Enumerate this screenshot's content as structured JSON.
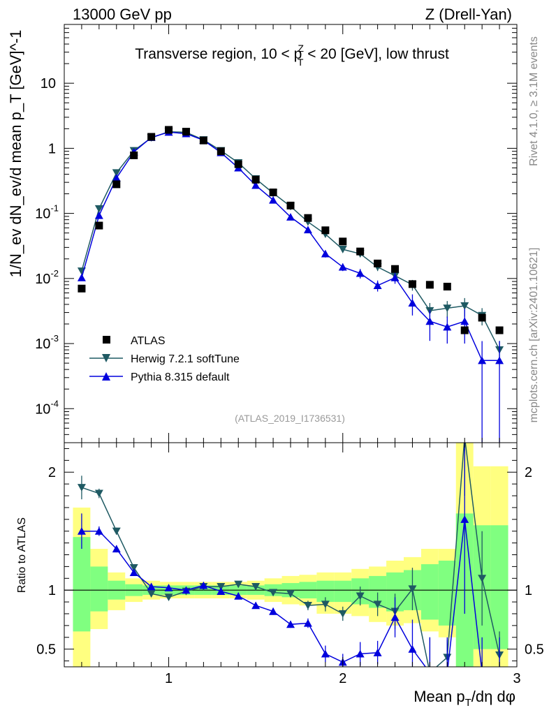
{
  "header": {
    "left": "13000 GeV pp",
    "right": "Z (Drell-Yan)"
  },
  "side_texts": {
    "rivet": "Rivet 4.1.0, ≥ 3.1M events",
    "mcplots": "mcplots.cern.ch [arXiv:2401.10621]"
  },
  "colors": {
    "data": "#000000",
    "herwig": "#1f5a63",
    "pythia": "#0000dd",
    "band_outer": "#ffff80",
    "band_inner": "#80ff80"
  },
  "chart_data": [
    {
      "type": "scatter",
      "title": "Transverse region, 10 < p_T^Z < 20 [GeV], low thrust",
      "title_parts": {
        "pre": "Transverse region, 10 < p",
        "sub": "T",
        "sup": "Z",
        "post": " < 20 [GeV], low thrust"
      },
      "ylabel": "1/N_ev dN_ev/d mean p_T [GeV]^-1",
      "yscale": "log",
      "ylim": [
        3e-05,
        80
      ],
      "xlim": [
        0.4,
        3.0
      ],
      "y_ticks": [
        {
          "v": 0.0001,
          "base": "10",
          "exp": "-4"
        },
        {
          "v": 0.001,
          "base": "10",
          "exp": "-3"
        },
        {
          "v": 0.01,
          "base": "10",
          "exp": "-2"
        },
        {
          "v": 0.1,
          "base": "10",
          "exp": "-1"
        },
        {
          "v": 1,
          "base": "1",
          "exp": ""
        },
        {
          "v": 10,
          "base": "10",
          "exp": ""
        }
      ],
      "watermark": "(ATLAS_2019_I1736531)",
      "legend": {
        "position": "lower-left",
        "entries": [
          "ATLAS",
          "Herwig 7.2.1 softTune",
          "Pythia 8.315 default"
        ]
      },
      "x": [
        0.5,
        0.6,
        0.7,
        0.8,
        0.9,
        1.0,
        1.1,
        1.2,
        1.3,
        1.4,
        1.5,
        1.6,
        1.7,
        1.8,
        1.9,
        2.0,
        2.1,
        2.2,
        2.3,
        2.4,
        2.5,
        2.6,
        2.7,
        2.8,
        2.9
      ],
      "series": [
        {
          "name": "ATLAS",
          "marker": "square",
          "values": [
            0.007,
            0.065,
            0.28,
            0.78,
            1.5,
            1.92,
            1.8,
            1.32,
            0.9,
            0.57,
            0.33,
            0.21,
            0.132,
            0.085,
            0.055,
            0.037,
            0.026,
            0.017,
            0.014,
            0.0082,
            0.008,
            0.0075,
            0.0016,
            0.0025,
            0.0016
          ]
        },
        {
          "name": "Herwig 7.2.1 softTune",
          "marker": "triangle-down",
          "values": [
            0.013,
            0.118,
            0.42,
            0.92,
            1.45,
            1.8,
            1.76,
            1.35,
            0.92,
            0.6,
            0.34,
            0.205,
            0.128,
            0.074,
            0.048,
            0.028,
            0.024,
            0.015,
            0.011,
            0.008,
            0.0032,
            0.0035,
            0.0038,
            0.0027,
            0.0008
          ],
          "err_lo": [
            0.0005,
            0.003,
            0.01,
            0.02,
            0.02,
            0.02,
            0.02,
            0.02,
            0.02,
            0.01,
            0.008,
            0.005,
            0.004,
            0.003,
            0.003,
            0.002,
            0.002,
            0.002,
            0.002,
            0.0015,
            0.001,
            0.001,
            0.0012,
            0.0008,
            0.0003
          ],
          "err_hi": [
            0.0005,
            0.003,
            0.01,
            0.02,
            0.02,
            0.02,
            0.02,
            0.02,
            0.02,
            0.01,
            0.008,
            0.005,
            0.004,
            0.003,
            0.003,
            0.002,
            0.002,
            0.002,
            0.002,
            0.0015,
            0.001,
            0.001,
            0.0012,
            0.0008,
            0.0003
          ]
        },
        {
          "name": "Pythia 8.315 default",
          "marker": "triangle-up",
          "values": [
            0.0103,
            0.093,
            0.35,
            0.88,
            1.47,
            1.77,
            1.68,
            1.33,
            0.86,
            0.5,
            0.27,
            0.16,
            0.088,
            0.056,
            0.024,
            0.015,
            0.012,
            0.0078,
            0.0103,
            0.0042,
            0.0022,
            0.0018,
            0.0022,
            0.00055,
            0.00055
          ],
          "err_lo": [
            0.0004,
            0.003,
            0.01,
            0.02,
            0.02,
            0.02,
            0.02,
            0.02,
            0.02,
            0.01,
            0.006,
            0.005,
            0.003,
            0.003,
            0.003,
            0.002,
            0.002,
            0.0015,
            0.002,
            0.0015,
            0.0011,
            0.0008,
            0.0012,
            0.00054,
            0.00054
          ],
          "err_hi": [
            0.0004,
            0.003,
            0.01,
            0.02,
            0.02,
            0.02,
            0.02,
            0.02,
            0.02,
            0.01,
            0.006,
            0.005,
            0.003,
            0.003,
            0.003,
            0.002,
            0.002,
            0.0015,
            0.002,
            0.0015,
            0.0011,
            0.0008,
            0.0012,
            0.00054,
            0.00054
          ]
        }
      ]
    },
    {
      "type": "scatter",
      "ylabel": "Ratio to ATLAS",
      "xlabel": "Mean p_T/dη dφ",
      "xlabel_parts": {
        "pre": "Mean p",
        "sub": "T",
        "post": "/dη dφ"
      },
      "xlim": [
        0.4,
        3.0
      ],
      "ylim": [
        0.35,
        2.25
      ],
      "x_ticks": [
        {
          "v": 1,
          "label": "1"
        },
        {
          "v": 2,
          "label": "2"
        },
        {
          "v": 3,
          "label": "3"
        }
      ],
      "y_ticks": [
        {
          "v": 0.5,
          "label": "0.5"
        },
        {
          "v": 1,
          "label": "1"
        },
        {
          "v": 2,
          "label": "2"
        }
      ],
      "x": [
        0.5,
        0.6,
        0.7,
        0.8,
        0.9,
        1.0,
        1.1,
        1.2,
        1.3,
        1.4,
        1.5,
        1.6,
        1.7,
        1.8,
        1.9,
        2.0,
        2.1,
        2.2,
        2.3,
        2.4,
        2.5,
        2.6,
        2.7,
        2.8,
        2.9
      ],
      "bands": {
        "edges": [
          0.45,
          0.55,
          0.65,
          0.75,
          0.85,
          0.95,
          1.05,
          1.15,
          1.25,
          1.35,
          1.45,
          1.55,
          1.65,
          1.75,
          1.85,
          1.95,
          2.05,
          2.15,
          2.25,
          2.35,
          2.45,
          2.55,
          2.65,
          2.75,
          2.85,
          2.95
        ],
        "outer_lo": [
          0.3,
          0.67,
          0.83,
          0.9,
          0.92,
          0.93,
          0.93,
          0.93,
          0.93,
          0.93,
          0.92,
          0.9,
          0.88,
          0.87,
          0.8,
          0.8,
          0.78,
          0.73,
          0.7,
          0.72,
          0.65,
          0.6,
          0.3,
          0.3,
          0.3
        ],
        "outer_hi": [
          1.7,
          1.35,
          1.15,
          1.1,
          1.08,
          1.07,
          1.07,
          1.07,
          1.07,
          1.07,
          1.08,
          1.1,
          1.12,
          1.13,
          1.15,
          1.15,
          1.18,
          1.2,
          1.25,
          1.28,
          1.35,
          1.35,
          2.3,
          2.05,
          2.05
        ],
        "inner_lo": [
          0.65,
          0.82,
          0.92,
          0.95,
          0.96,
          0.96,
          0.96,
          0.96,
          0.96,
          0.96,
          0.96,
          0.95,
          0.94,
          0.93,
          0.9,
          0.9,
          0.88,
          0.85,
          0.82,
          0.83,
          0.75,
          0.7,
          0.3,
          0.5,
          0.5
        ],
        "inner_hi": [
          1.45,
          1.2,
          1.08,
          1.05,
          1.04,
          1.04,
          1.04,
          1.04,
          1.04,
          1.04,
          1.04,
          1.05,
          1.06,
          1.07,
          1.08,
          1.08,
          1.1,
          1.12,
          1.15,
          1.17,
          1.22,
          1.25,
          1.65,
          1.55,
          1.55
        ]
      },
      "series": [
        {
          "name": "Herwig 7.2.1 softTune",
          "marker": "triangle-down",
          "values": [
            1.87,
            1.82,
            1.5,
            1.19,
            0.97,
            0.94,
            0.99,
            1.03,
            1.03,
            1.05,
            1.03,
            0.98,
            0.97,
            0.87,
            0.88,
            0.8,
            0.95,
            0.88,
            0.82,
            1.01,
            0.3,
            0.43,
            2.3,
            1.1,
            0.45
          ],
          "err_lo": [
            0.1,
            0.04,
            0.03,
            0.02,
            0.02,
            0.01,
            0.01,
            0.01,
            0.01,
            0.01,
            0.02,
            0.02,
            0.03,
            0.04,
            0.06,
            0.06,
            0.08,
            0.1,
            0.15,
            0.18,
            0.3,
            0.15,
            0.5,
            0.4,
            0.2
          ],
          "err_hi": [
            0.1,
            0.04,
            0.03,
            0.02,
            0.02,
            0.01,
            0.01,
            0.01,
            0.01,
            0.01,
            0.02,
            0.02,
            0.03,
            0.04,
            0.06,
            0.06,
            0.08,
            0.1,
            0.15,
            0.18,
            0.3,
            0.15,
            0.5,
            0.4,
            0.2
          ]
        },
        {
          "name": "Pythia 8.315 default",
          "marker": "triangle-up",
          "values": [
            1.5,
            1.5,
            1.35,
            1.15,
            1.03,
            1.02,
            1.0,
            1.04,
            0.99,
            0.95,
            0.87,
            0.82,
            0.71,
            0.72,
            0.46,
            0.39,
            0.46,
            0.47,
            0.77,
            0.5,
            0.3,
            0.3,
            1.6,
            0.3,
            0.3
          ],
          "err_lo": [
            0.15,
            0.04,
            0.03,
            0.02,
            0.02,
            0.01,
            0.01,
            0.01,
            0.01,
            0.01,
            0.02,
            0.03,
            0.03,
            0.04,
            0.07,
            0.07,
            0.1,
            0.1,
            0.17,
            0.25,
            0.3,
            0.3,
            0.8,
            0.3,
            0.3
          ],
          "err_hi": [
            0.15,
            0.04,
            0.03,
            0.02,
            0.02,
            0.01,
            0.01,
            0.01,
            0.01,
            0.01,
            0.02,
            0.03,
            0.03,
            0.04,
            0.07,
            0.07,
            0.1,
            0.1,
            0.17,
            0.25,
            0.3,
            0.3,
            0.8,
            0.3,
            0.3
          ]
        }
      ]
    }
  ]
}
